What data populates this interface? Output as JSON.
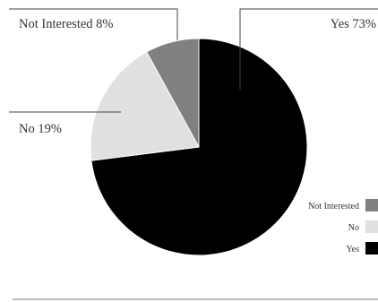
{
  "chart_data": {
    "type": "pie",
    "title": "",
    "categories": [
      "Yes",
      "No",
      "Not Interested"
    ],
    "values": [
      73,
      19,
      8
    ],
    "unit": "%",
    "colors": {
      "Yes": "#000000",
      "No": "#e0e0e0",
      "Not Interested": "#808080"
    },
    "start_angle_deg": 0,
    "direction": "clockwise",
    "data_labels": [
      "Yes 73%",
      "No 19%",
      "Not Interested 8%"
    ],
    "legend": {
      "placement": "right",
      "entries": [
        "Not Interested",
        "No",
        "Yes"
      ]
    }
  }
}
